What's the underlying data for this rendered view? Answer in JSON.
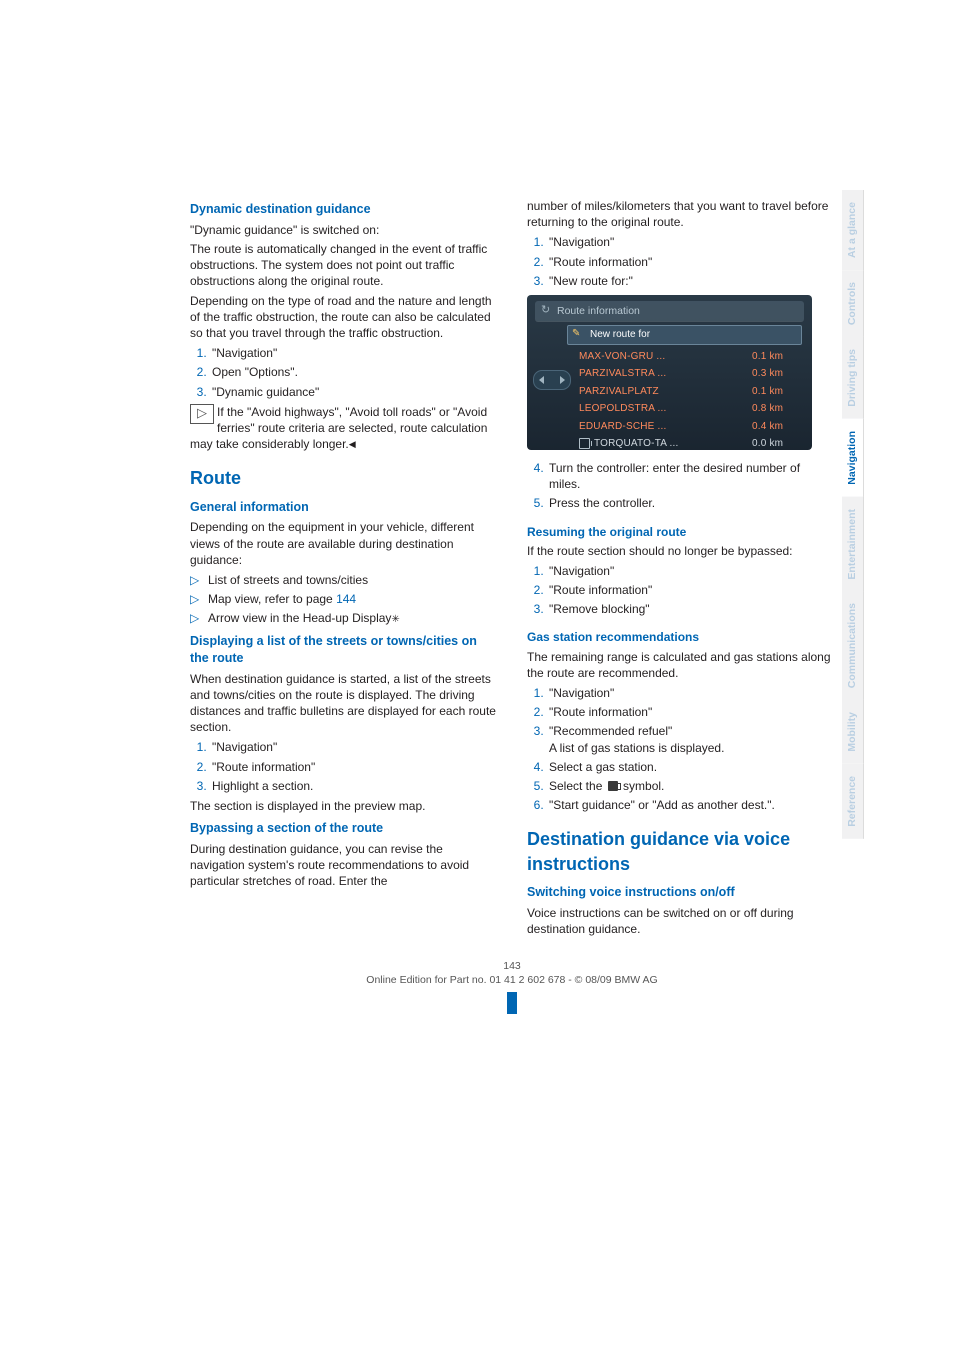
{
  "sidetabs": [
    {
      "label": "At a glance",
      "active": false
    },
    {
      "label": "Controls",
      "active": false
    },
    {
      "label": "Driving tips",
      "active": false
    },
    {
      "label": "Navigation",
      "active": true
    },
    {
      "label": "Entertainment",
      "active": false
    },
    {
      "label": "Communications",
      "active": false
    },
    {
      "label": "Mobility",
      "active": false
    },
    {
      "label": "Reference",
      "active": false
    }
  ],
  "left": {
    "h_dyn": "Dynamic destination guidance",
    "p_dyn1": "\"Dynamic guidance\" is switched on:",
    "p_dyn2": "The route is automatically changed in the event of traffic obstructions. The system does not point out traffic obstructions along the original route.",
    "p_dyn3": "Depending on the type of road and the nature and length of the traffic obstruction, the route can also be calculated so that you travel through the traffic obstruction.",
    "ol_dyn": [
      "\"Navigation\"",
      "Open \"Options\".",
      "\"Dynamic guidance\""
    ],
    "note1a": "If the \"Avoid highways\", \"Avoid toll roads\" or \"Avoid ferries\" route criteria are",
    "note1b": "selected, route calculation may take considerably longer.",
    "h_route": "Route",
    "h_gi": "General information",
    "p_gi": "Depending on the equipment in your vehicle, different views of the route are available during destination guidance:",
    "ul_gi1": "List of streets and towns/cities",
    "ul_gi2a": "Map view, refer to page ",
    "ul_gi2b": "144",
    "ul_gi3": "Arrow view in the Head-up Display",
    "h_list": "Displaying a list of the streets or towns/cities on the route",
    "p_list": "When destination guidance is started, a list of the streets and towns/cities on the route is displayed. The driving distances and traffic bulletins are displayed for each route section.",
    "ol_list": [
      "\"Navigation\"",
      "\"Route information\"",
      "Highlight a section."
    ],
    "p_list2": "The section is displayed in the preview map.",
    "h_byp": "Bypassing a section of the route",
    "p_byp": "During destination guidance, you can revise the navigation system's route recommendations to avoid particular stretches of road. Enter the"
  },
  "right": {
    "p_top": "number of miles/kilometers that you want to travel before returning to the original route.",
    "ol_top": [
      "\"Navigation\"",
      "\"Route information\"",
      "\"New route for:\""
    ],
    "screen": {
      "header": "Route information",
      "subheader": "New route for",
      "rows": [
        {
          "label": "MAX-VON-GRU ...",
          "dist": "0.1 km"
        },
        {
          "label": "PARZIVALSTRA ...",
          "dist": "0.3 km"
        },
        {
          "label": "PARZIVALPLATZ",
          "dist": "0.1 km"
        },
        {
          "label": "LEOPOLDSTRA ...",
          "dist": "0.8 km"
        },
        {
          "label": "EDUARD-SCHE ...",
          "dist": "0.4 km"
        }
      ],
      "last": {
        "label": "TORQUATO-TA ...",
        "dist": "0.0 km"
      }
    },
    "ol_top2": [
      "Turn the controller: enter the desired number of miles.",
      "Press the controller."
    ],
    "h_res": "Resuming the original route",
    "p_res": "If the route section should no longer be bypassed:",
    "ol_res": [
      "\"Navigation\"",
      "\"Route information\"",
      "\"Remove blocking\""
    ],
    "h_gas": "Gas station recommendations",
    "p_gas": "The remaining range is calculated and gas stations along the route are recommended.",
    "ol_gas_1": "\"Navigation\"",
    "ol_gas_2": "\"Route information\"",
    "ol_gas_3a": "\"Recommended refuel\"",
    "ol_gas_3b": "A list of gas stations is displayed.",
    "ol_gas_4": "Select a gas station.",
    "ol_gas_5a": "Select the ",
    "ol_gas_5b": " symbol.",
    "ol_gas_6": "\"Start guidance\" or \"Add as another dest.\".",
    "h_voice": "Destination guidance via voice instructions",
    "h_sw": "Switching voice instructions on/off",
    "p_sw": "Voice instructions can be switched on or off during destination guidance."
  },
  "footer": {
    "pagenum": "143",
    "line": "Online Edition for Part no. 01 41 2 602 678 - © 08/09 BMW AG"
  }
}
